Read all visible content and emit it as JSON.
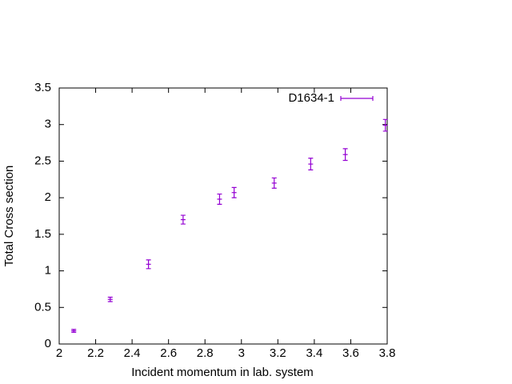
{
  "chart_data": {
    "type": "errorbar",
    "x_label": "Incident momentum in lab. system",
    "y_label": "Total Cross section",
    "series": [
      {
        "name": "D1634-1",
        "color": "#9400d3",
        "x": [
          2.08,
          2.28,
          2.49,
          2.68,
          2.88,
          2.96,
          3.18,
          3.38,
          3.57,
          3.79
        ],
        "values": [
          0.18,
          0.61,
          1.09,
          1.7,
          1.98,
          2.07,
          2.2,
          2.46,
          2.59,
          2.99
        ],
        "errors": [
          0.02,
          0.03,
          0.06,
          0.06,
          0.07,
          0.07,
          0.07,
          0.08,
          0.08,
          0.08
        ]
      }
    ],
    "xlim": [
      2,
      3.8
    ],
    "xticks": [
      2,
      2.2,
      2.4,
      2.6,
      2.8,
      3,
      3.2,
      3.4,
      3.6,
      3.8
    ],
    "ylim": [
      0,
      3.5
    ],
    "yticks": [
      0,
      0.5,
      1,
      1.5,
      2,
      2.5,
      3,
      3.5
    ],
    "grid": false,
    "legend": "top-right"
  }
}
